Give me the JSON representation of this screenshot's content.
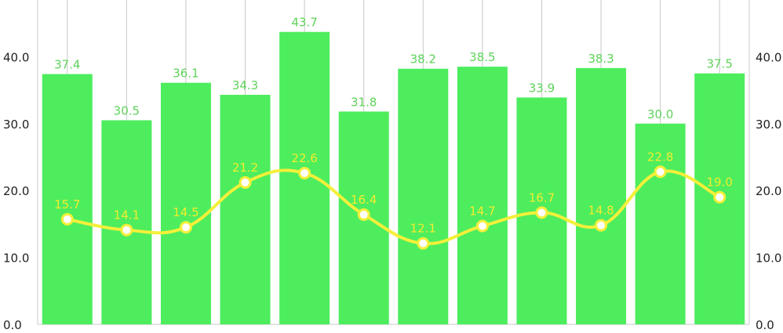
{
  "chart_data": {
    "type": "bar",
    "categories": [
      "",
      "",
      "",
      "",
      "",
      "",
      "",
      "",
      "",
      "",
      "",
      ""
    ],
    "series": [
      {
        "type": "bar",
        "values": [
          37.4,
          30.5,
          36.1,
          34.3,
          43.7,
          31.8,
          38.2,
          38.5,
          33.9,
          38.3,
          30.0,
          37.5
        ],
        "color": "#4ded5e"
      },
      {
        "type": "line",
        "values": [
          15.7,
          14.1,
          14.5,
          21.2,
          22.6,
          16.4,
          12.1,
          14.7,
          16.7,
          14.8,
          22.8,
          19.0
        ],
        "color": "#f4f03a"
      }
    ],
    "y_left": {
      "ticks": [
        "0.0",
        "10.0",
        "20.0",
        "30.0",
        "40.0"
      ],
      "range": [
        0,
        48
      ]
    },
    "y_right": {
      "ticks": [
        "0.0",
        "10.0",
        "20.0",
        "30.0",
        "40.0"
      ],
      "range": [
        0,
        48
      ]
    },
    "vertical_grid": true,
    "data_labels": true
  }
}
